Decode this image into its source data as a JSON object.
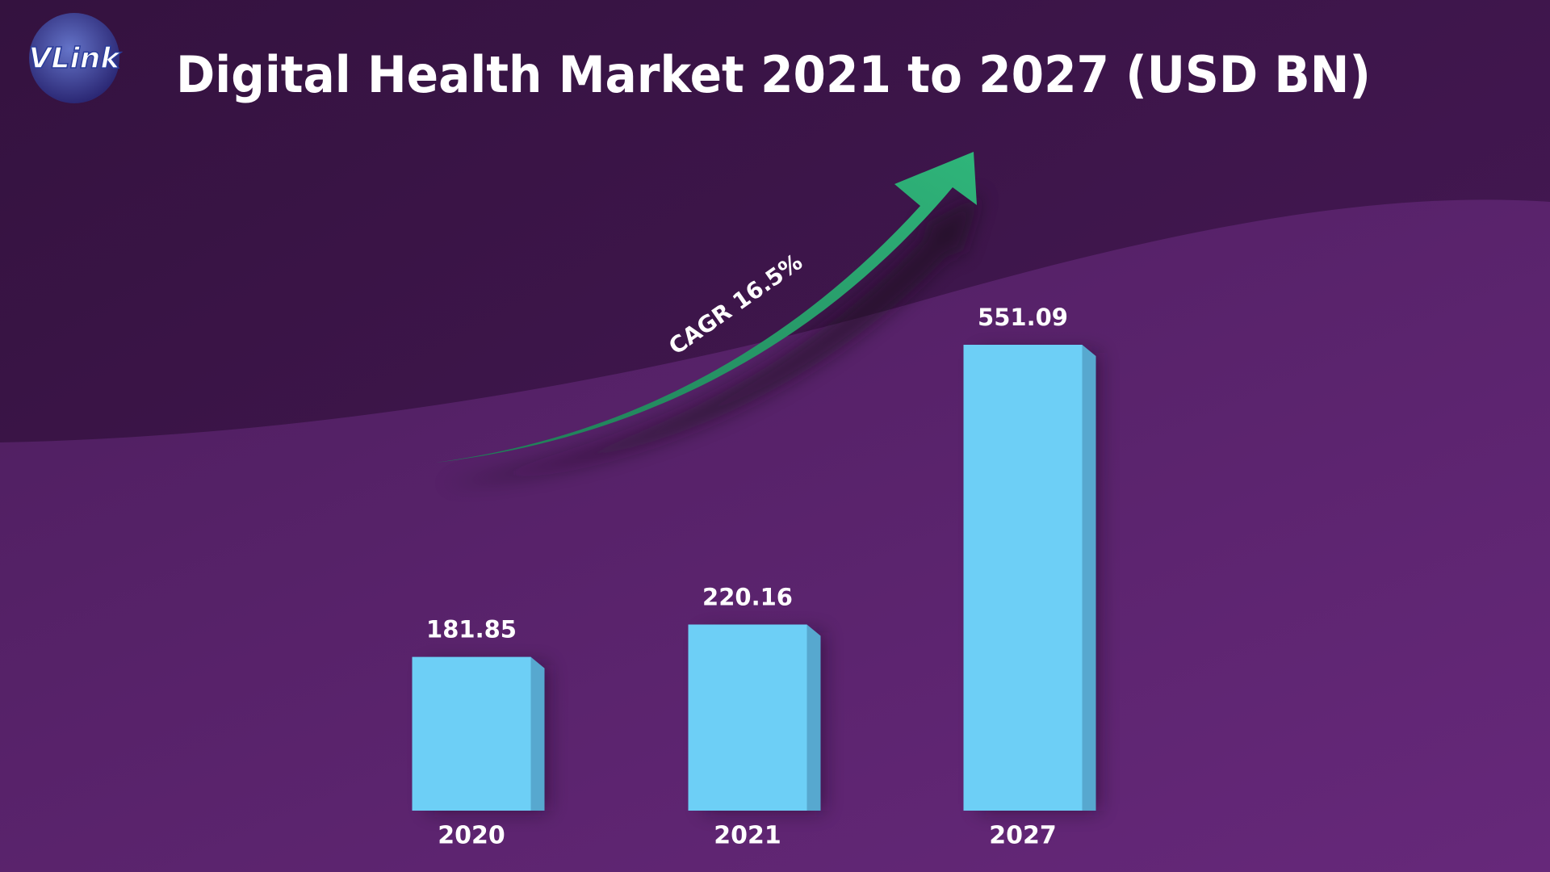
{
  "logo": "VLink",
  "chart_data": {
    "type": "bar",
    "title": "Digital Health Market 2021 to 2027 (USD BN)",
    "annotation": "CAGR 16.5%",
    "categories": [
      "2020",
      "2021",
      "2027"
    ],
    "values": [
      181.85,
      220.16,
      551.09
    ],
    "color": "#6dcff6",
    "side_color": "#57a8cf"
  }
}
